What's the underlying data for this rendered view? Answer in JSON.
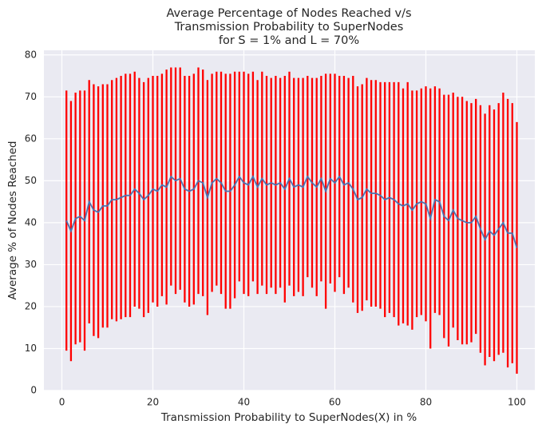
{
  "chart_data": {
    "type": "line",
    "title": [
      "Average Percentage of Nodes Reached v/s",
      "Transmission Probability to SuperNodes",
      "for S = 1% and L = 70%"
    ],
    "x_label": "Transmission Probability to SuperNodes(X) in %",
    "y_label": "Average % of Nodes Reached",
    "x": [
      1,
      2,
      3,
      4,
      5,
      6,
      7,
      8,
      9,
      10,
      11,
      12,
      13,
      14,
      15,
      16,
      17,
      18,
      19,
      20,
      21,
      22,
      23,
      24,
      25,
      26,
      27,
      28,
      29,
      30,
      31,
      32,
      33,
      34,
      35,
      36,
      37,
      38,
      39,
      40,
      41,
      42,
      43,
      44,
      45,
      46,
      47,
      48,
      49,
      50,
      51,
      52,
      53,
      54,
      55,
      56,
      57,
      58,
      59,
      60,
      61,
      62,
      63,
      64,
      65,
      66,
      67,
      68,
      69,
      70,
      71,
      72,
      73,
      74,
      75,
      76,
      77,
      78,
      79,
      80,
      81,
      82,
      83,
      84,
      85,
      86,
      87,
      88,
      89,
      90,
      91,
      92,
      93,
      94,
      95,
      96,
      97,
      98,
      99,
      100
    ],
    "values": [
      40.5,
      38,
      41,
      41.5,
      40.5,
      45,
      43,
      42.5,
      44,
      44,
      45.5,
      45.5,
      46,
      46.5,
      46.5,
      48,
      47,
      45.5,
      46.5,
      48,
      47.5,
      49,
      48.5,
      51,
      50,
      50.5,
      48,
      47.5,
      48,
      50,
      49.5,
      46,
      49.5,
      50.5,
      49.5,
      47.5,
      47.5,
      49,
      51,
      49.5,
      49,
      51,
      48.5,
      50.5,
      49,
      49.5,
      49,
      49.5,
      48,
      50.5,
      48.5,
      49,
      48.5,
      51,
      49.5,
      48.5,
      50.5,
      47.5,
      50.5,
      49.5,
      51,
      49,
      49.5,
      48,
      45.5,
      46,
      48,
      47,
      47,
      46.5,
      45.5,
      46,
      45.5,
      44.5,
      44,
      44.5,
      43,
      44.5,
      45,
      44.5,
      41,
      45.5,
      45,
      41.5,
      40.5,
      43,
      41,
      40.5,
      40,
      40,
      41.5,
      38.5,
      36,
      38,
      37,
      38.5,
      40,
      37.5,
      37.5,
      34
    ],
    "errors": [
      31,
      31,
      30,
      30,
      31,
      29,
      30,
      30,
      29,
      29,
      28.5,
      29,
      29,
      29,
      29,
      28,
      27.5,
      28,
      28,
      27,
      27.5,
      26.5,
      28,
      26,
      27,
      26.5,
      27,
      27.5,
      27.5,
      27,
      27,
      28,
      26,
      25.5,
      26.5,
      28,
      28,
      27,
      25,
      26.5,
      26.5,
      25,
      25.5,
      25.5,
      26,
      25,
      26,
      25,
      27,
      25.5,
      26,
      25.5,
      26,
      24,
      25,
      26,
      24.5,
      28,
      25,
      26,
      24,
      26,
      25,
      27,
      27,
      27,
      26.5,
      27,
      27,
      27,
      28,
      27.5,
      28,
      29,
      28,
      29,
      28.5,
      27,
      27,
      28,
      31,
      27,
      27,
      29,
      30,
      28,
      29,
      29.5,
      29,
      28.5,
      28,
      29.5,
      30,
      30,
      30,
      30,
      31,
      32,
      31,
      30
    ],
    "color": "#4c72b0",
    "error_color": "#ff0000",
    "xlim": [
      -3.95,
      103.95
    ],
    "ylim": [
      0,
      81.1
    ],
    "xticks": [
      0,
      20,
      40,
      60,
      80,
      100
    ],
    "yticks": [
      0,
      10,
      20,
      30,
      40,
      50,
      60,
      70,
      80
    ],
    "grid": true
  }
}
